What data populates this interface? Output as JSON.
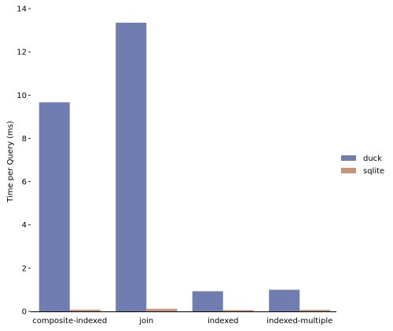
{
  "chart_data": {
    "type": "bar",
    "title": "",
    "xlabel": "",
    "ylabel": "Time per Query (ms)",
    "categories": [
      "composite-indexed",
      "join",
      "indexed",
      "indexed-multiple"
    ],
    "series": [
      {
        "name": "duck",
        "color": "#6f7db0",
        "values": [
          9.67,
          13.35,
          0.93,
          1.0
        ]
      },
      {
        "name": "sqlite",
        "color": "#c99379",
        "values": [
          0.08,
          0.12,
          0.06,
          0.07
        ]
      }
    ],
    "ylim": [
      0,
      14
    ],
    "yticks": [
      0,
      2,
      4,
      6,
      8,
      10,
      12,
      14
    ],
    "grid": false,
    "legend_position": "right"
  }
}
